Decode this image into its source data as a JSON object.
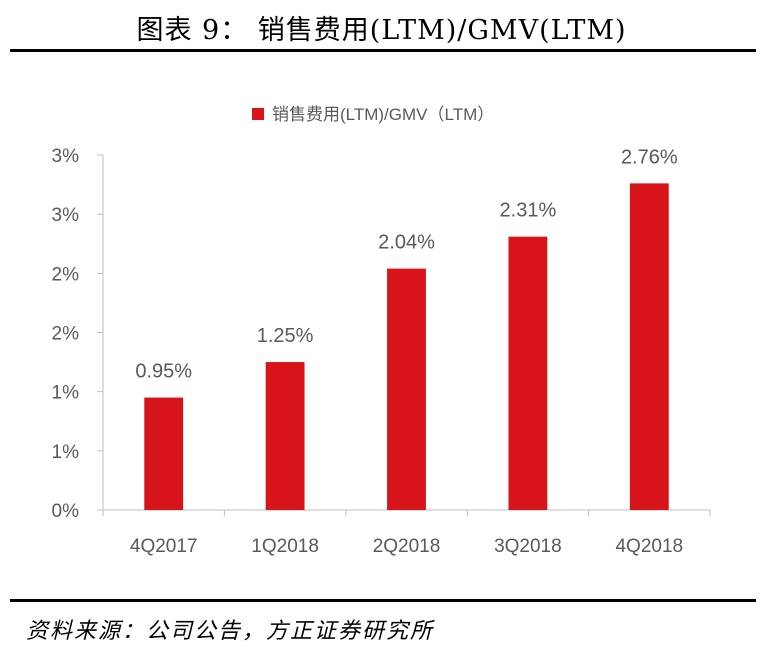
{
  "figure": {
    "title": "图表 9：  销售费用(LTM)/GMV(LTM)",
    "source": "资料来源：公司公告，方正证券研究所"
  },
  "colors": {
    "bar": "#d7141a",
    "axis": "#bfbfbf",
    "text": "#595959"
  },
  "chart_data": {
    "type": "bar",
    "categories": [
      "4Q2017",
      "1Q2018",
      "2Q2018",
      "3Q2018",
      "4Q2018"
    ],
    "series": [
      {
        "name": "销售费用(LTM)/GMV（LTM）",
        "values": [
          0.95,
          1.25,
          2.04,
          2.31,
          2.76
        ]
      }
    ],
    "data_labels": [
      "0.95%",
      "1.25%",
      "2.04%",
      "2.31%",
      "2.76%"
    ],
    "y_tick_labels": [
      "0%",
      "1%",
      "1%",
      "2%",
      "2%",
      "3%",
      "3%"
    ],
    "ylim": [
      0,
      3
    ],
    "unit": "%",
    "legend": "top-center",
    "grid": false
  }
}
